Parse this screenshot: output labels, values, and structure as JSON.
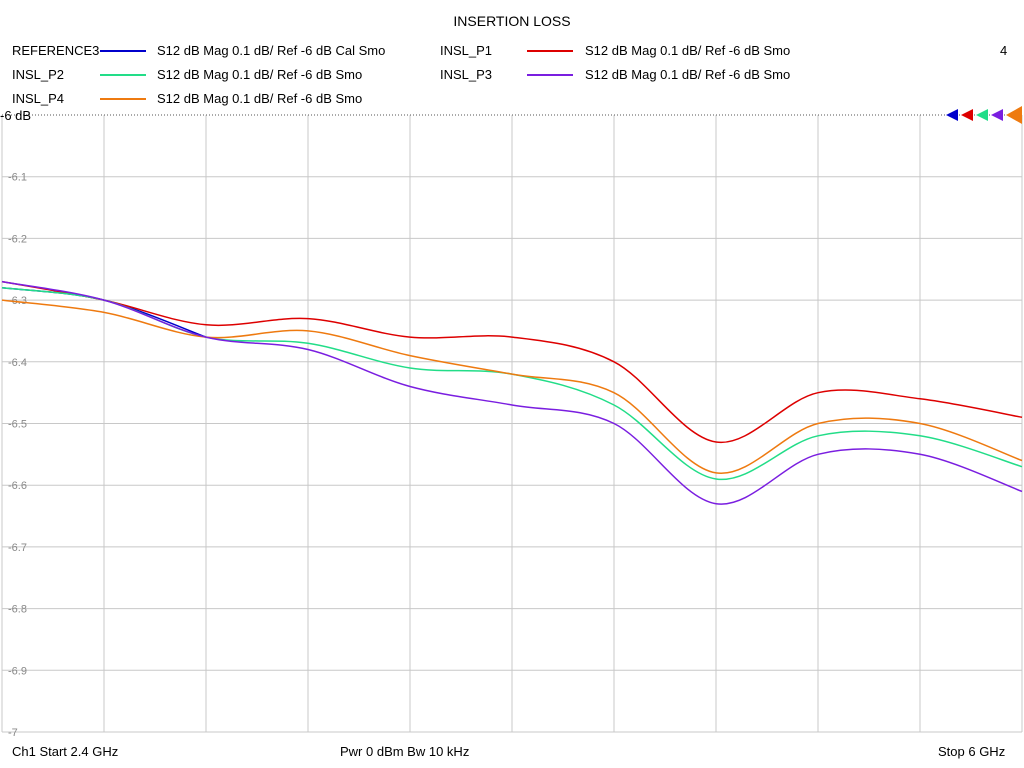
{
  "chart_data": {
    "type": "line",
    "title": "INSERTION LOSS",
    "channel_number": "4",
    "ref_label": "-6 dB",
    "xlim": [
      2.4,
      6.0
    ],
    "ylim": [
      -7.0,
      -6.0
    ],
    "y_ticks": [
      "-6.1",
      "-6.2",
      "-6.3",
      "-6.4",
      "-6.5",
      "-6.6",
      "-6.7",
      "-6.8",
      "-6.9",
      "-7"
    ],
    "y_tick_values": [
      -6.1,
      -6.2,
      -6.3,
      -6.4,
      -6.5,
      -6.6,
      -6.7,
      -6.8,
      -6.9,
      -7.0
    ],
    "x_divisions": 10,
    "grid": true,
    "x": [
      2.4,
      2.76,
      3.12,
      3.48,
      3.84,
      4.2,
      4.56,
      4.92,
      5.28,
      5.64,
      6.0
    ],
    "series": [
      {
        "name": "REFERENCE3",
        "desc": "S12  dB Mag  0.1 dB/ Ref -6 dB  Cal Smo",
        "color": "#0000cc",
        "x": [
          2.4,
          2.76,
          3.12
        ],
        "values": [
          -6.28,
          -6.3,
          -6.36
        ]
      },
      {
        "name": "INSL_P1",
        "desc": "S12  dB Mag  0.1 dB/ Ref -6 dB  Smo",
        "color": "#dd0000",
        "values": [
          -6.27,
          -6.3,
          -6.34,
          -6.33,
          -6.36,
          -6.36,
          -6.4,
          -6.53,
          -6.45,
          -6.46,
          -6.49
        ]
      },
      {
        "name": "INSL_P2",
        "desc": "S12  dB Mag  0.1 dB/ Ref -6 dB  Smo",
        "color": "#22dd88",
        "values": [
          -6.28,
          -6.3,
          -6.36,
          -6.37,
          -6.41,
          -6.42,
          -6.47,
          -6.59,
          -6.52,
          -6.52,
          -6.57
        ]
      },
      {
        "name": "INSL_P3",
        "desc": "S12  dB Mag  0.1 dB/ Ref -6 dB  Smo",
        "color": "#7a1ee0",
        "values": [
          -6.27,
          -6.3,
          -6.36,
          -6.38,
          -6.44,
          -6.47,
          -6.5,
          -6.63,
          -6.55,
          -6.55,
          -6.61
        ]
      },
      {
        "name": "INSL_P4",
        "desc": "S12  dB Mag  0.1 dB/ Ref -6 dB  Smo",
        "color": "#ee7a10",
        "values": [
          -6.3,
          -6.32,
          -6.36,
          -6.35,
          -6.39,
          -6.42,
          -6.45,
          -6.58,
          -6.5,
          -6.5,
          -6.56
        ]
      }
    ]
  },
  "footer": {
    "start": "Ch1  Start  2.4 GHz",
    "center": "Pwr  0 dBm  Bw  10 kHz",
    "stop": "Stop  6 GHz"
  }
}
